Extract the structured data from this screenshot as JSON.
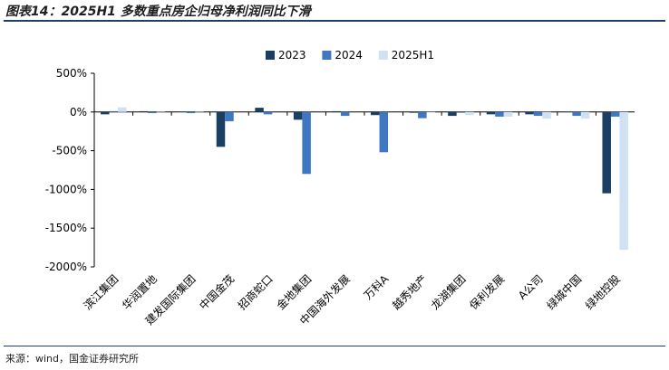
{
  "title": "图表14：2025H1 多数重点房企归母净利润同比下滑",
  "source": "来源：wind，国金证券研究所",
  "chart_data": {
    "type": "bar",
    "ylim": [
      -2000,
      500
    ],
    "yticks": [
      500,
      0,
      -500,
      -1000,
      -1500,
      -2000
    ],
    "ytick_labels": [
      "500%",
      "0%",
      "-500%",
      "-1000%",
      "-1500%",
      "-2000%"
    ],
    "grid": false,
    "legend_position": "top-center",
    "categories": [
      "滨江集团",
      "华润置地",
      "建发国际集团",
      "中国金茂",
      "招商蛇口",
      "金地集团",
      "中国海外发展",
      "万科A",
      "越秀地产",
      "龙湖集团",
      "保利发展",
      "A公司",
      "绿城中国",
      "绿地控股"
    ],
    "series": [
      {
        "name": "2023",
        "color": "#1b3f63",
        "values": [
          -30,
          10,
          5,
          -450,
          55,
          -100,
          10,
          -40,
          -10,
          -50,
          -30,
          -30,
          5,
          -1050
        ]
      },
      {
        "name": "2024",
        "color": "#3f78c1",
        "values": [
          10,
          -15,
          -15,
          -120,
          -30,
          -800,
          -50,
          -520,
          -80,
          -10,
          -60,
          -50,
          -50,
          -60
        ]
      },
      {
        "name": "2025H1",
        "color": "#cfe1f3",
        "values": [
          60,
          5,
          5,
          0,
          0,
          0,
          0,
          0,
          -10,
          -40,
          -60,
          -85,
          -85,
          -1780
        ]
      }
    ]
  }
}
